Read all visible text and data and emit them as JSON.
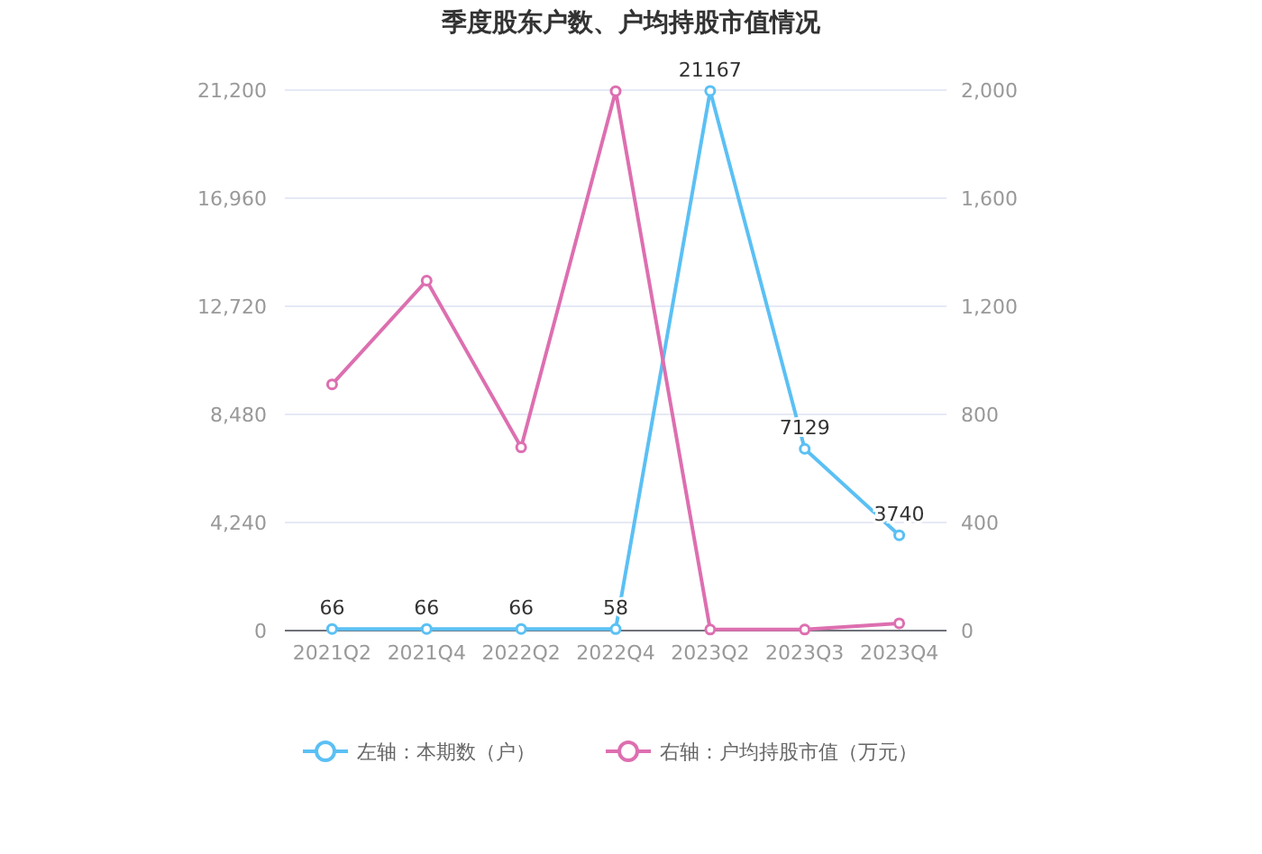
{
  "chart_data": {
    "type": "line",
    "title": "季度股东户数、户均持股市值情况",
    "categories": [
      "2021Q2",
      "2021Q4",
      "2022Q2",
      "2022Q4",
      "2023Q2",
      "2023Q3",
      "2023Q4"
    ],
    "series": [
      {
        "name": "左轴：本期数（户）",
        "color": "#5bc0f4",
        "values": [
          66,
          66,
          66,
          58,
          21167,
          7129,
          3740
        ],
        "value_labels": [
          "66",
          "66",
          "66",
          "58",
          "21167",
          "7129",
          "3740"
        ]
      },
      {
        "name": "右轴：户均持股市值（万元）",
        "color": "#dd6fb0",
        "axis": "y2",
        "values": [
          911,
          1295,
          678,
          1996,
          4,
          4,
          27
        ]
      }
    ],
    "ylim": [
      0,
      21200
    ],
    "yticks": [
      0,
      {
        "value": 4240,
        "label": "4,240"
      },
      {
        "value": 8480,
        "label": "8,480"
      },
      {
        "value": 12720,
        "label": "12,720"
      },
      {
        "value": 16960,
        "label": "16,960"
      },
      {
        "value": 21200,
        "label": "21,200"
      }
    ],
    "y2lim": [
      0,
      2000
    ],
    "y2ticks": [
      0,
      400,
      800,
      {
        "value": 1200,
        "label": "1,200"
      },
      {
        "value": 1600,
        "label": "1,600"
      },
      {
        "value": 2000,
        "label": "2,000"
      }
    ],
    "grid": "y",
    "legend": "bottom",
    "marker": "circle",
    "line_style": "solid"
  }
}
